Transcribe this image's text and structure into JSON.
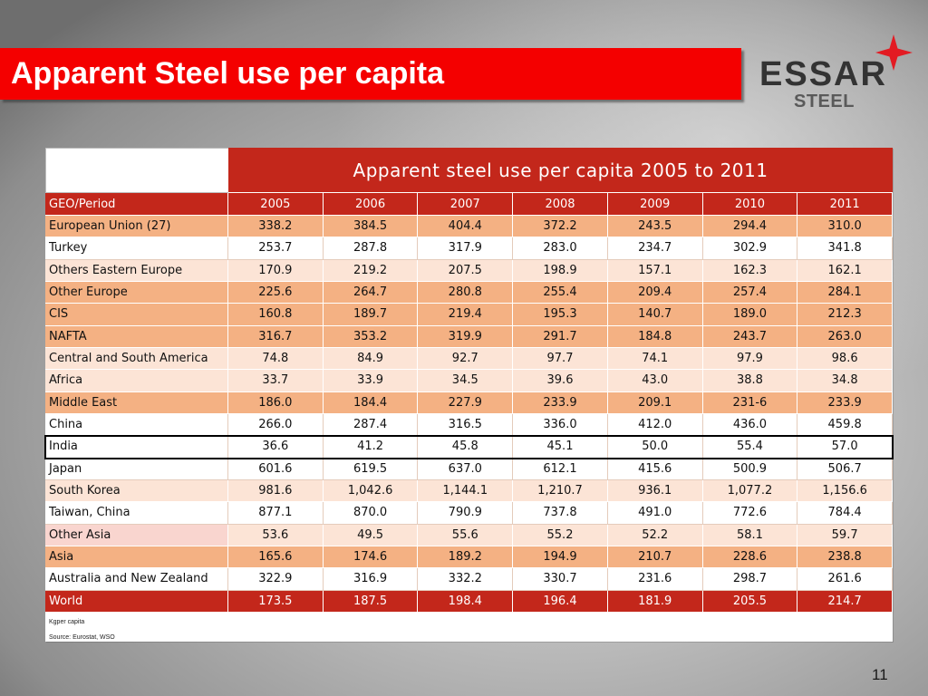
{
  "slide": {
    "title": "Apparent Steel use per capita",
    "page_number": "11"
  },
  "logo": {
    "brand": "ESSAR",
    "sub": "STEEL",
    "icon": "red-four-point-star-icon"
  },
  "colors": {
    "banner_red": "#F40000",
    "header_red": "#C3271B",
    "logo_red": "#E31B23",
    "grid_white": "#FFFFFF",
    "grid_light": "#E4CBBB"
  },
  "table": {
    "caption": "Apparent steel use per capita 2005 to 2011",
    "header_label": "GEO/Period",
    "years": [
      "2005",
      "2006",
      "2007",
      "2008",
      "2009",
      "2010",
      "2011"
    ],
    "rows": [
      {
        "label": "European Union (27)",
        "values": [
          "338.2",
          "384.5",
          "404.4",
          "372.2",
          "243.5",
          "294.4",
          "310.0"
        ],
        "bg": "#F4B183"
      },
      {
        "label": "Turkey",
        "values": [
          "253.7",
          "287.8",
          "317.9",
          "283.0",
          "234.7",
          "302.9",
          "341.8"
        ],
        "bg": "#FFFFFF"
      },
      {
        "label": "Others Eastern Europe",
        "values": [
          "170.9",
          "219.2",
          "207.5",
          "198.9",
          "157.1",
          "162.3",
          "162.1"
        ],
        "bg": "#FCE4D6"
      },
      {
        "label": "Other Europe",
        "values": [
          "225.6",
          "264.7",
          "280.8",
          "255.4",
          "209.4",
          "257.4",
          "284.1"
        ],
        "bg": "#F4B183"
      },
      {
        "label": "CIS",
        "values": [
          "160.8",
          "189.7",
          "219.4",
          "195.3",
          "140.7",
          "189.0",
          "212.3"
        ],
        "bg": "#F4B183"
      },
      {
        "label": "NAFTA",
        "values": [
          "316.7",
          "353.2",
          "319.9",
          "291.7",
          "184.8",
          "243.7",
          "263.0"
        ],
        "bg": "#F4B183"
      },
      {
        "label": "Central and South America",
        "values": [
          "74.8",
          "84.9",
          "92.7",
          "97.7",
          "74.1",
          "97.9",
          "98.6"
        ],
        "bg": "#FCE4D6"
      },
      {
        "label": "Africa",
        "values": [
          "33.7",
          "33.9",
          "34.5",
          "39.6",
          "43.0",
          "38.8",
          "34.8"
        ],
        "bg": "#FCE4D6"
      },
      {
        "label": "Middle East",
        "values": [
          "186.0",
          "184.4",
          "227.9",
          "233.9",
          "209.1",
          "231-6",
          "233.9"
        ],
        "bg": "#F4B183"
      },
      {
        "label": "China",
        "values": [
          "266.0",
          "287.4",
          "316.5",
          "336.0",
          "412.0",
          "436.0",
          "459.8"
        ],
        "bg": "#FFFFFF"
      },
      {
        "label": "India",
        "values": [
          "36.6",
          "41.2",
          "45.8",
          "45.1",
          "50.0",
          "55.4",
          "57.0"
        ],
        "bg": "#FFFFFF",
        "outline": "#000000"
      },
      {
        "label": "Japan",
        "values": [
          "601.6",
          "619.5",
          "637.0",
          "612.1",
          "415.6",
          "500.9",
          "506.7"
        ],
        "bg": "#FFFFFF"
      },
      {
        "label": "South Korea",
        "values": [
          "981.6",
          "1,042.6",
          "1,144.1",
          "1,210.7",
          "936.1",
          "1,077.2",
          "1,156.6"
        ],
        "bg": "#FCE4D6"
      },
      {
        "label": "Taiwan, China",
        "values": [
          "877.1",
          "870.0",
          "790.9",
          "737.8",
          "491.0",
          "772.6",
          "784.4"
        ],
        "bg": "#FFFFFF"
      },
      {
        "label": "Other Asia",
        "values": [
          "53.6",
          "49.5",
          "55.6",
          "55.2",
          "52.2",
          "58.1",
          "59.7"
        ],
        "bg": "#FCE4D6",
        "label_bg": "#F9D5CF"
      },
      {
        "label": "Asia",
        "values": [
          "165.6",
          "174.6",
          "189.2",
          "194.9",
          "210.7",
          "228.6",
          "238.8"
        ],
        "bg": "#F4B183"
      },
      {
        "label": "Australia and New Zealand",
        "values": [
          "322.9",
          "316.9",
          "332.2",
          "330.7",
          "231.6",
          "298.7",
          "261.6"
        ],
        "bg": "#FFFFFF"
      },
      {
        "label": "World",
        "values": [
          "173.5",
          "187.5",
          "198.4",
          "196.4",
          "181.9",
          "205.5",
          "214.7"
        ],
        "bg": "#C3271B",
        "fg": "#FFFFFF"
      }
    ],
    "unit_note": "Kgper capita",
    "source_note": "Source: Eurostat, WSO"
  }
}
